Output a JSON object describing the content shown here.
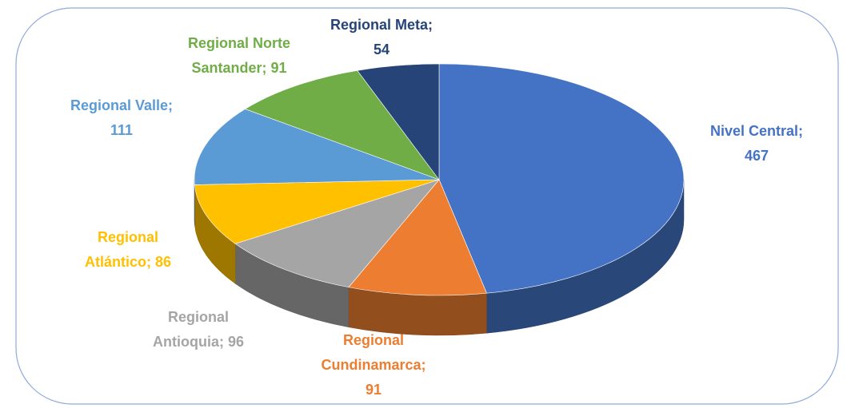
{
  "chart_data": {
    "type": "pie",
    "values": [
      467,
      91,
      96,
      86,
      111,
      91,
      54
    ],
    "value_labels": [
      "Nivel Central;\n467",
      "Regional\nCundinamarca;\n91",
      "Regional\nAntioquia; 96",
      "Regional\nAtlántico; 86",
      "Regional Valle;\n111",
      "Regional Norte\nSantander; 91",
      "Regional Meta;\n54"
    ],
    "colors": [
      "#4472c4",
      "#ed7d31",
      "#a5a5a5",
      "#ffc000",
      "#5b9bd5",
      "#70ad47",
      "#264478"
    ]
  }
}
